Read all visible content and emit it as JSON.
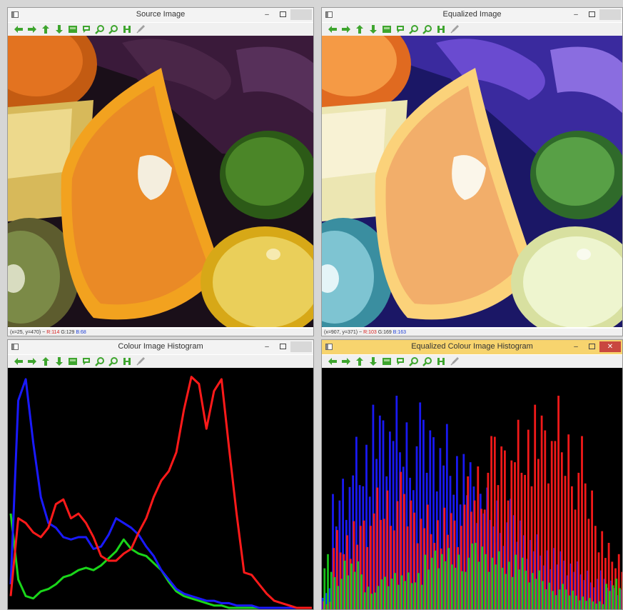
{
  "windows": {
    "source": {
      "title": "Source Image",
      "status": {
        "coords": "(x=25, y=470) ~",
        "r": "R:114",
        "g": "G:129",
        "b": "B:68"
      }
    },
    "equalized": {
      "title": "Equalized Image",
      "status": {
        "coords": "(x=907, y=371) ~",
        "r": "R:103",
        "g": "G:169",
        "b": "B:163"
      }
    },
    "hist": {
      "title": "Colour Image Histogram"
    },
    "eqhist": {
      "title": "Equalized Colour Image Histogram"
    }
  },
  "toolbar_icons": [
    "arrow-left-icon",
    "arrow-right-icon",
    "arrow-up-icon",
    "arrow-down-icon",
    "save-icon",
    "flag-icon",
    "zoom-in-icon",
    "zoom-out-icon",
    "save-as-icon",
    "properties-icon"
  ],
  "colors": {
    "toolbar_green": "#3ea52e",
    "active_title": "#f7d46e",
    "close_red": "#c9473f"
  },
  "chart_data": [
    {
      "type": "line",
      "series": [
        {
          "name": "blue",
          "color": "#1a1aff",
          "values": [
            0.1,
            0.88,
            0.97,
            0.7,
            0.47,
            0.36,
            0.34,
            0.3,
            0.29,
            0.3,
            0.3,
            0.25,
            0.26,
            0.31,
            0.38,
            0.36,
            0.34,
            0.31,
            0.26,
            0.22,
            0.16,
            0.12,
            0.08,
            0.06,
            0.05,
            0.04,
            0.03,
            0.03,
            0.02,
            0.02,
            0.01,
            0.01,
            0.01,
            0.0,
            0.0,
            0.0,
            0.0,
            0.0,
            0.0,
            0.0,
            0.0
          ]
        },
        {
          "name": "red",
          "color": "#ff1a1a",
          "values": [
            0.05,
            0.38,
            0.36,
            0.32,
            0.3,
            0.34,
            0.44,
            0.46,
            0.38,
            0.4,
            0.36,
            0.3,
            0.22,
            0.2,
            0.2,
            0.23,
            0.25,
            0.32,
            0.38,
            0.47,
            0.54,
            0.58,
            0.66,
            0.84,
            0.98,
            0.95,
            0.76,
            0.92,
            0.97,
            0.68,
            0.4,
            0.15,
            0.14,
            0.1,
            0.06,
            0.03,
            0.02,
            0.01,
            0.0,
            0.0,
            0.0
          ]
        },
        {
          "name": "green",
          "color": "#1ad61a",
          "values": [
            0.4,
            0.12,
            0.05,
            0.04,
            0.07,
            0.08,
            0.1,
            0.13,
            0.14,
            0.16,
            0.17,
            0.16,
            0.18,
            0.21,
            0.24,
            0.29,
            0.25,
            0.23,
            0.22,
            0.19,
            0.16,
            0.11,
            0.07,
            0.05,
            0.04,
            0.03,
            0.02,
            0.01,
            0.01,
            0.0,
            0.0,
            0.0,
            0.0,
            0.0,
            0.0,
            0.0,
            0.0,
            0.0,
            0.0,
            0.0,
            0.0
          ]
        }
      ]
    },
    {
      "type": "bar",
      "series": [
        {
          "name": "blue",
          "color": "#1a1aff",
          "values": [
            0.1,
            0.55,
            0.7,
            0.82,
            0.88,
            0.92,
            0.95,
            0.96,
            0.94,
            0.93,
            0.9,
            0.92,
            0.88,
            0.82,
            0.7,
            0.62,
            0.55,
            0.55,
            0.5,
            0.45,
            0.4,
            0.36,
            0.32,
            0.28,
            0.25,
            0.22,
            0.2,
            0.18,
            0.15,
            0.12
          ]
        },
        {
          "name": "red",
          "color": "#ff1a1a",
          "values": [
            0.05,
            0.38,
            0.4,
            0.4,
            0.45,
            0.55,
            0.6,
            0.62,
            0.55,
            0.52,
            0.5,
            0.48,
            0.46,
            0.45,
            0.6,
            0.72,
            0.78,
            0.82,
            0.85,
            0.9,
            0.96,
            0.92,
            0.9,
            0.96,
            0.88,
            0.78,
            0.6,
            0.45,
            0.32,
            0.3
          ]
        },
        {
          "name": "green",
          "color": "#1ad61a",
          "values": [
            0.3,
            0.15,
            0.25,
            0.22,
            0.12,
            0.14,
            0.16,
            0.2,
            0.18,
            0.2,
            0.25,
            0.3,
            0.28,
            0.28,
            0.3,
            0.32,
            0.3,
            0.28,
            0.26,
            0.25,
            0.2,
            0.18,
            0.14,
            0.12,
            0.1,
            0.08,
            0.06,
            0.05,
            0.12,
            0.16
          ]
        }
      ]
    }
  ]
}
